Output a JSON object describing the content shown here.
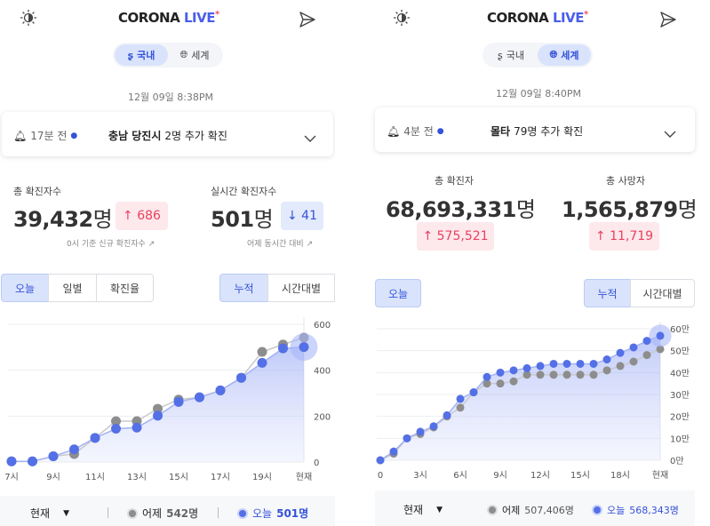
{
  "colors": {
    "accent": "#4a5ee8",
    "today": "#5470e6",
    "yesterday": "#8d8d8d",
    "up": "#e8415e",
    "down": "#3552d8"
  },
  "left": {
    "header": {
      "logo_main": "CORONA",
      "logo_live": "LIVE",
      "theme_icon": "sun-icon",
      "share_icon": "send-icon"
    },
    "region_toggle": {
      "domestic": "국내",
      "world": "세계",
      "selected": "국내"
    },
    "timestamp": "12월 09일 8:38PM",
    "news": {
      "ago": "17분 전",
      "place": "충남 당진시",
      "text": "2명 추가 확진"
    },
    "stats": {
      "total_label": "총 확진자수",
      "total_value": "39,432",
      "total_unit": "명",
      "total_delta": "686",
      "total_note": "0시 기준 신규 확진자수",
      "live_label": "실시간 확진자수",
      "live_value": "501",
      "live_unit": "명",
      "live_delta": "41",
      "live_note": "어제 동시간 대비"
    },
    "tabs": {
      "today": "오늘",
      "daily": "일별",
      "rate": "확진율",
      "cumulative": "누적",
      "hourly": "시간대별"
    },
    "footer": {
      "select": "현재",
      "yesterday_label": "어제",
      "yesterday_value": "542명",
      "today_label": "오늘",
      "today_value": "501명"
    }
  },
  "right": {
    "header": {
      "logo_main": "CORONA",
      "logo_live": "LIVE",
      "theme_icon": "sun-icon",
      "share_icon": "send-icon"
    },
    "region_toggle": {
      "domestic": "국내",
      "world": "세계",
      "selected": "세계"
    },
    "timestamp": "12월 09일 8:40PM",
    "news": {
      "ago": "4분 전",
      "place": "몰타",
      "text": "79명 추가 확진"
    },
    "stats": {
      "cases_label": "총 확진자",
      "cases_value": "68,693,331",
      "cases_unit": "명",
      "cases_delta": "575,521",
      "deaths_label": "총 사망자",
      "deaths_value": "1,565,879",
      "deaths_unit": "명",
      "deaths_delta": "11,719"
    },
    "tabs": {
      "today": "오늘",
      "cumulative": "누적",
      "hourly": "시간대별"
    },
    "footer": {
      "select": "현재",
      "yesterday_label": "어제",
      "yesterday_value": "507,406명",
      "today_label": "오늘",
      "today_value": "568,343명"
    }
  },
  "chart_data": [
    {
      "type": "line",
      "x": [
        "7시",
        "8시",
        "9시",
        "10시",
        "11시",
        "12시",
        "13시",
        "14시",
        "15시",
        "16시",
        "17시",
        "18시",
        "19시",
        "20시",
        "현재"
      ],
      "xticks": [
        "7시",
        "9시",
        "11시",
        "13시",
        "15시",
        "17시",
        "19시",
        "현재"
      ],
      "yticks": [
        "0",
        "200",
        "400",
        "600"
      ],
      "ylim": [
        0,
        600
      ],
      "series": [
        {
          "name": "어제",
          "values": [
            3,
            3,
            25,
            35,
            105,
            178,
            178,
            232,
            272,
            282,
            312,
            367,
            480,
            512,
            542
          ]
        },
        {
          "name": "오늘",
          "values": [
            3,
            3,
            25,
            55,
            105,
            145,
            150,
            202,
            262,
            282,
            312,
            367,
            432,
            495,
            501
          ]
        }
      ]
    },
    {
      "type": "line",
      "x": [
        0,
        1,
        2,
        3,
        4,
        5,
        6,
        7,
        8,
        9,
        10,
        11,
        12,
        13,
        14,
        15,
        16,
        17,
        18,
        19,
        20,
        21
      ],
      "xticks": [
        "0",
        "3시",
        "6시",
        "9시",
        "12시",
        "15시",
        "18시",
        "현재"
      ],
      "yticks": [
        "0만",
        "10만",
        "20만",
        "30만",
        "40만",
        "50만",
        "60만"
      ],
      "ylim": [
        0,
        60
      ],
      "series": [
        {
          "name": "어제",
          "values": [
            0,
            3,
            10,
            12,
            15,
            20,
            24,
            31,
            35,
            35,
            36,
            39,
            39,
            39,
            39,
            39,
            39,
            41,
            43,
            45,
            48,
            50.7
          ]
        },
        {
          "name": "오늘",
          "values": [
            0,
            4,
            10,
            13,
            15.5,
            20.5,
            28,
            31,
            38,
            40,
            41,
            42,
            43,
            44,
            44,
            44,
            44,
            46,
            49,
            51.5,
            54.5,
            56.8
          ]
        }
      ]
    }
  ]
}
